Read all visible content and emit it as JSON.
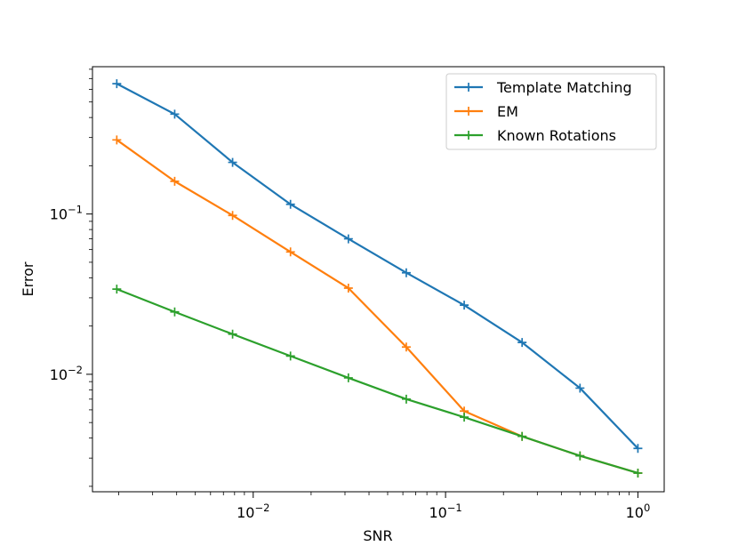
{
  "chart_data": {
    "type": "line",
    "title": "",
    "xlabel": "SNR",
    "ylabel": "Error",
    "xscale": "log",
    "yscale": "log",
    "xlim": [
      0.00146,
      1.37
    ],
    "ylim": [
      0.00185,
      0.83
    ],
    "grid": false,
    "legend_position": "top-right",
    "x": [
      0.001953125,
      0.00390625,
      0.0078125,
      0.015625,
      0.03125,
      0.0625,
      0.125,
      0.25,
      0.5,
      1.0
    ],
    "x_ticks": [
      {
        "value": 0.01,
        "base": "10",
        "exp": "−2"
      },
      {
        "value": 0.1,
        "base": "10",
        "exp": "−1"
      },
      {
        "value": 1,
        "base": "10",
        "exp": "0"
      }
    ],
    "y_ticks": [
      {
        "value": 0.01,
        "base": "10",
        "exp": "−2"
      },
      {
        "value": 0.1,
        "base": "10",
        "exp": "−1"
      }
    ],
    "series": [
      {
        "name": "Template Matching",
        "color": "#1f77b4",
        "values": [
          0.65,
          0.42,
          0.21,
          0.115,
          0.07,
          0.043,
          0.027,
          0.0158,
          0.0082,
          0.00345
        ]
      },
      {
        "name": "EM",
        "color": "#ff7f0e",
        "values": [
          0.29,
          0.16,
          0.098,
          0.058,
          0.0345,
          0.0148,
          0.0059,
          0.0041,
          0.0031,
          0.00242
        ]
      },
      {
        "name": "Known Rotations",
        "color": "#2ca02c",
        "values": [
          0.034,
          0.0245,
          0.0178,
          0.013,
          0.0095,
          0.007,
          0.0054,
          0.0041,
          0.0031,
          0.00242
        ]
      }
    ]
  }
}
